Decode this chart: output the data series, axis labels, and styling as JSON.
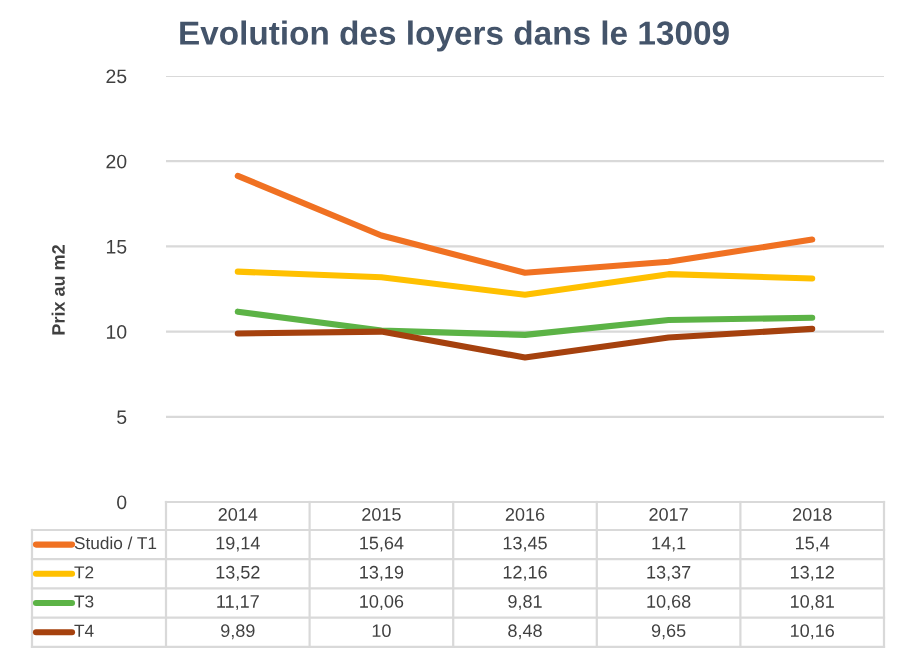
{
  "chart_data": {
    "type": "line",
    "title": "Evolution des loyers dans le 13009",
    "ylabel": "Prix au m2",
    "categories": [
      "2014",
      "2015",
      "2016",
      "2017",
      "2018"
    ],
    "series": [
      {
        "name": "Studio / T1",
        "color": "#f07122",
        "values": [
          19.14,
          15.64,
          13.45,
          14.1,
          15.4
        ],
        "value_labels": [
          "19,14",
          "15,64",
          "13,45",
          "14,1",
          "15,4"
        ]
      },
      {
        "name": "T2",
        "color": "#ffc000",
        "values": [
          13.52,
          13.19,
          12.16,
          13.37,
          13.12
        ],
        "value_labels": [
          "13,52",
          "13,19",
          "12,16",
          "13,37",
          "13,12"
        ]
      },
      {
        "name": "T3",
        "color": "#5cb346",
        "values": [
          11.17,
          10.06,
          9.81,
          10.68,
          10.81
        ],
        "value_labels": [
          "11,17",
          "10,06",
          "9,81",
          "10,68",
          "10,81"
        ]
      },
      {
        "name": "T4",
        "color": "#a5410e",
        "values": [
          9.89,
          10,
          8.48,
          9.65,
          10.16
        ],
        "value_labels": [
          "9,89",
          "10",
          "8,48",
          "9,65",
          "10,16"
        ]
      }
    ],
    "ylim": [
      0,
      25
    ],
    "yticks": [
      0,
      5,
      10,
      15,
      20,
      25
    ],
    "grid": "y",
    "legend": "bottom",
    "marker": "none",
    "line_style": "solid"
  }
}
